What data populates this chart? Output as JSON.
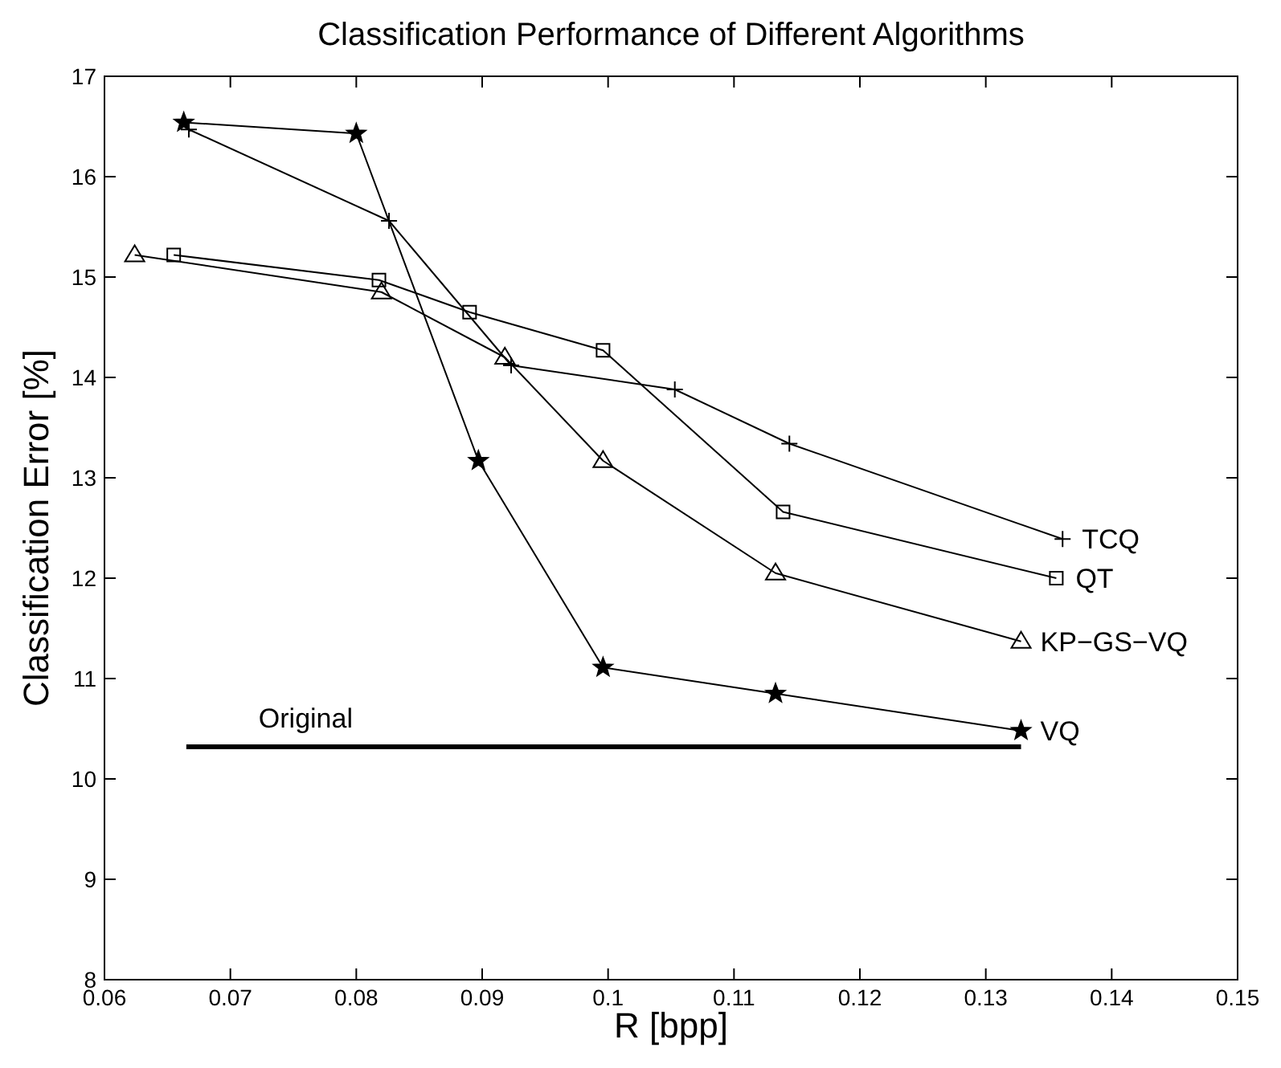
{
  "chart_data": {
    "type": "line",
    "title": "Classification Performance of Different Algorithms",
    "xlabel": "R [bpp]",
    "ylabel": "Classification Error [%]",
    "xlim": [
      0.06,
      0.15
    ],
    "ylim": [
      8,
      17
    ],
    "xticks": [
      0.06,
      0.07,
      0.08,
      0.09,
      0.1,
      0.11,
      0.12,
      0.13,
      0.14,
      0.15
    ],
    "yticks": [
      8,
      9,
      10,
      11,
      12,
      13,
      14,
      15,
      16,
      17
    ],
    "grid": false,
    "line_style": "solid",
    "series": [
      {
        "name": "TCQ",
        "color": "#000000",
        "marker": "cross",
        "x": [
          0.0667,
          0.0826,
          0.0923,
          0.1053,
          0.1144,
          0.1361
        ],
        "values": [
          16.47,
          15.56,
          14.12,
          13.88,
          13.34,
          12.39
        ]
      },
      {
        "name": "QT",
        "color": "#000000",
        "marker": "square",
        "x": [
          0.0655,
          0.0818,
          0.089,
          0.0996,
          0.1139,
          0.1356
        ],
        "values": [
          15.22,
          14.97,
          14.65,
          14.27,
          12.66,
          12.0
        ]
      },
      {
        "name": "KP−GS−VQ",
        "color": "#000000",
        "marker": "triangle",
        "x": [
          0.0624,
          0.082,
          0.0918,
          0.0996,
          0.1133,
          0.1328
        ],
        "values": [
          15.22,
          14.85,
          14.2,
          13.17,
          12.05,
          11.37
        ]
      },
      {
        "name": "VQ",
        "color": "#000000",
        "marker": "star",
        "x": [
          0.0663,
          0.08,
          0.0897,
          0.0996,
          0.1133,
          0.1328
        ],
        "values": [
          16.54,
          16.43,
          13.17,
          11.11,
          10.85,
          10.48
        ]
      },
      {
        "name": "Original",
        "color": "#000000",
        "marker": "none",
        "x": [
          0.0665,
          0.1328
        ],
        "values": [
          10.32,
          10.32
        ]
      }
    ]
  }
}
